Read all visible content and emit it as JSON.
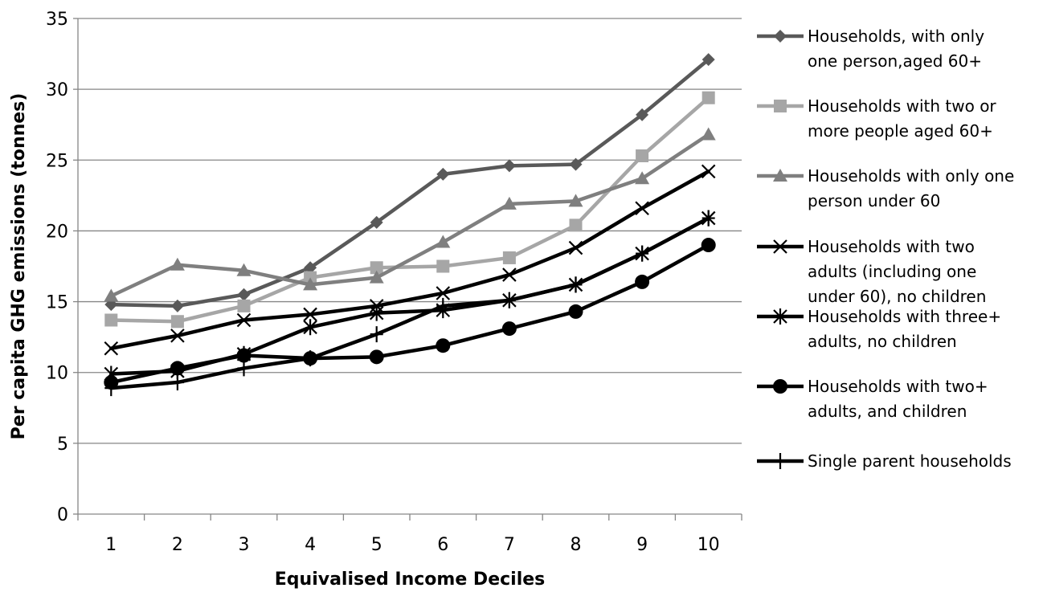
{
  "chart_data": {
    "type": "line",
    "title": "",
    "xlabel": "Equivalised Income Deciles",
    "ylabel": "Per capita GHG emissions (tonnes)",
    "ylim": [
      0,
      35
    ],
    "yticks": [
      0,
      5,
      10,
      15,
      20,
      25,
      30,
      35
    ],
    "categories": [
      "1",
      "2",
      "3",
      "4",
      "5",
      "6",
      "7",
      "8",
      "9",
      "10"
    ],
    "grid": true,
    "legend_position": "right",
    "series": [
      {
        "name": "Households, with only one person,aged 60+",
        "legend_lines": [
          "Households, with only",
          "one person,aged 60+"
        ],
        "values": [
          14.8,
          14.7,
          15.5,
          17.4,
          20.6,
          24.0,
          24.6,
          24.7,
          28.2,
          32.1
        ],
        "color": "#595959",
        "marker": "diamond"
      },
      {
        "name": "Households with two or more people aged 60+",
        "legend_lines": [
          "Households with two or",
          "more people aged 60+"
        ],
        "values": [
          13.7,
          13.6,
          14.7,
          16.7,
          17.4,
          17.5,
          18.1,
          20.4,
          25.3,
          29.4
        ],
        "color": "#a6a6a6",
        "marker": "square"
      },
      {
        "name": "Households with only one person under 60",
        "legend_lines": [
          "Households with only one",
          "person under 60"
        ],
        "values": [
          15.4,
          17.6,
          17.2,
          16.2,
          16.7,
          19.2,
          21.9,
          22.1,
          23.7,
          26.8
        ],
        "color": "#7f7f7f",
        "marker": "triangle"
      },
      {
        "name": "Households with two adults (including one under 60), no children",
        "legend_lines": [
          "Households with two",
          "adults (including one",
          "under 60), no children"
        ],
        "values": [
          11.7,
          12.6,
          13.7,
          14.1,
          14.7,
          15.6,
          16.9,
          18.8,
          21.6,
          24.2
        ],
        "color": "#000000",
        "marker": "x"
      },
      {
        "name": "Households with three+ adults, no children",
        "legend_lines": [
          "Households with three+",
          "adults, no children"
        ],
        "values": [
          9.9,
          10.1,
          11.3,
          13.2,
          14.2,
          14.4,
          15.1,
          16.2,
          18.4,
          20.9
        ],
        "color": "#000000",
        "marker": "asterisk"
      },
      {
        "name": "Households with two+ adults, and children",
        "legend_lines": [
          "Households with two+",
          "adults, and children"
        ],
        "values": [
          9.3,
          10.3,
          11.2,
          11.0,
          11.1,
          11.9,
          13.1,
          14.3,
          16.4,
          19.0
        ],
        "color": "#000000",
        "marker": "circle"
      },
      {
        "name": "Single parent households",
        "legend_lines": [
          "Single parent households"
        ],
        "values": [
          8.9,
          9.3,
          10.3,
          11.0,
          12.7,
          14.7,
          15.1,
          16.2,
          18.4,
          20.9
        ],
        "color": "#000000",
        "marker": "plus"
      }
    ]
  }
}
